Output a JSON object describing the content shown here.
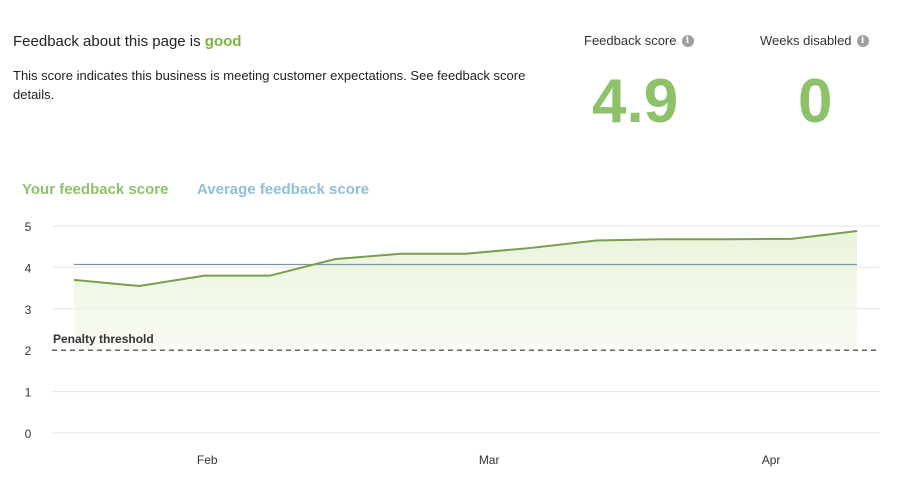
{
  "feedback": {
    "headline_prefix": "Feedback about this page is",
    "rating": "good",
    "description": "This score indicates this business is meeting customer expectations.",
    "details_link": "See feedback score details."
  },
  "stats": {
    "feedback_score_label": "Feedback score",
    "feedback_score_value": "4.9",
    "weeks_disabled_label": "Weeks disabled",
    "weeks_disabled_value": "0"
  },
  "legend": {
    "yours": "Your feedback score",
    "average": "Average feedback score"
  },
  "colors": {
    "your_line": "#7a9e4e",
    "average_line": "#7b98a8",
    "threshold": "#666666",
    "accent": "#8dc26a"
  },
  "chart_data": {
    "type": "line",
    "title": "",
    "xlabel": "",
    "ylabel": "",
    "ylim": [
      0,
      5
    ],
    "yticks": [
      "0",
      "1",
      "2",
      "3",
      "4",
      "5"
    ],
    "xticks": [
      {
        "label": "Feb",
        "x": 4
      },
      {
        "label": "Mar",
        "x": 13
      },
      {
        "label": "Apr",
        "x": 22
      }
    ],
    "xlim": [
      0,
      25
    ],
    "series": [
      {
        "name": "Your feedback score",
        "x": [
          1,
          3,
          5,
          7,
          9,
          11,
          13,
          15,
          17,
          19,
          21,
          23,
          25
        ],
        "values": [
          3.7,
          3.55,
          3.8,
          3.8,
          4.2,
          4.33,
          4.33,
          4.47,
          4.65,
          4.68,
          4.68,
          4.69,
          4.88
        ]
      },
      {
        "name": "Average feedback score",
        "x": [
          1,
          25
        ],
        "values": [
          4.07,
          4.07
        ]
      }
    ],
    "threshold": {
      "value": 2,
      "label": "Penalty threshold"
    }
  }
}
